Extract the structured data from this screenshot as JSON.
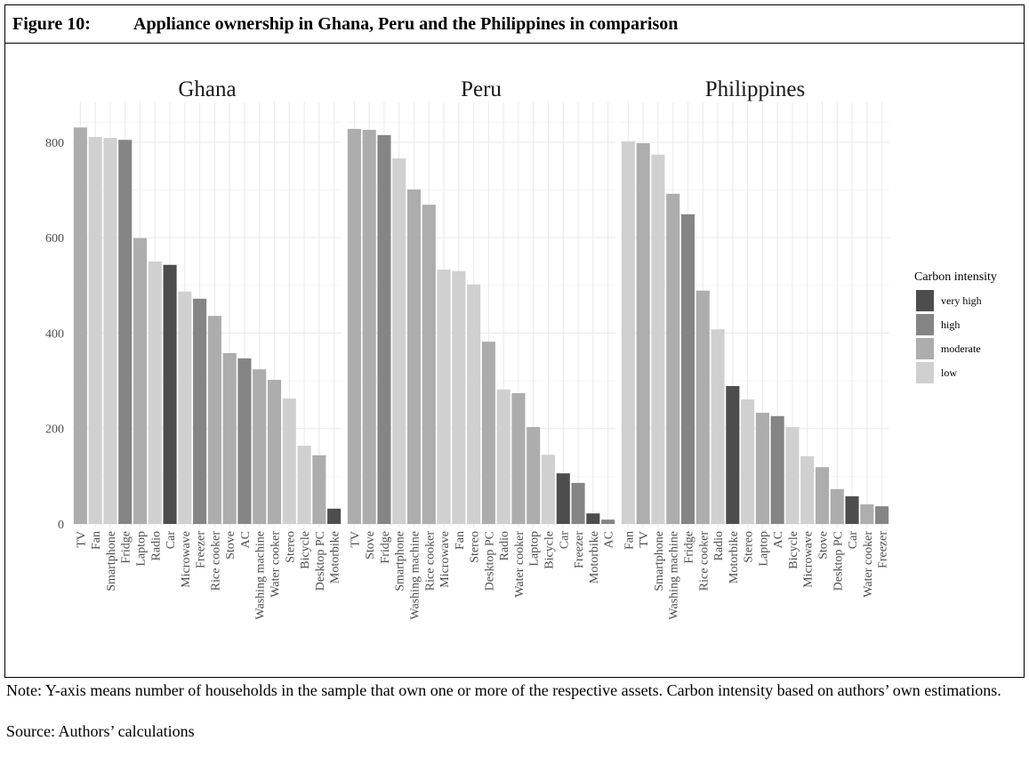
{
  "figure": {
    "label": "Figure 10:",
    "title": "Appliance ownership in Ghana, Peru and the Philippines in comparison"
  },
  "chart_data": [
    {
      "type": "bar",
      "title": "Ghana",
      "categories": [
        "TV",
        "Fan",
        "Smartphone",
        "Fridge",
        "Laptop",
        "Radio",
        "Car",
        "Microwave",
        "Freezer",
        "Rice cooker",
        "Stove",
        "AC",
        "Washing machine",
        "Water cooker",
        "Stereo",
        "Bicycle",
        "Desktop PC",
        "Motorbike"
      ],
      "values": [
        831,
        811,
        809,
        805,
        599,
        550,
        543,
        487,
        472,
        436,
        358,
        347,
        324,
        302,
        263,
        164,
        144,
        32
      ],
      "colors": [
        "#adadad",
        "#d0d0d0",
        "#d0d0d0",
        "#858585",
        "#adadad",
        "#d0d0d0",
        "#4d4d4d",
        "#d0d0d0",
        "#858585",
        "#adadad",
        "#adadad",
        "#858585",
        "#adadad",
        "#adadad",
        "#d0d0d0",
        "#d0d0d0",
        "#adadad",
        "#4d4d4d"
      ],
      "ylim": [
        0,
        880
      ],
      "yticks": [
        0,
        200,
        400,
        600,
        800
      ],
      "grid": true
    },
    {
      "type": "bar",
      "title": "Peru",
      "categories": [
        "TV",
        "Stove",
        "Fridge",
        "Smartphone",
        "Washing machine",
        "Rice cooker",
        "Microwave",
        "Fan",
        "Stereo",
        "Desktop PC",
        "Radio",
        "Water cooker",
        "Laptop",
        "Bicycle",
        "Car",
        "Freezer",
        "Motorbike",
        "AC"
      ],
      "values": [
        828,
        826,
        815,
        766,
        701,
        669,
        533,
        530,
        502,
        382,
        282,
        274,
        203,
        145,
        106,
        86,
        22,
        9
      ],
      "colors": [
        "#adadad",
        "#adadad",
        "#858585",
        "#d0d0d0",
        "#adadad",
        "#adadad",
        "#d0d0d0",
        "#d0d0d0",
        "#d0d0d0",
        "#adadad",
        "#d0d0d0",
        "#adadad",
        "#adadad",
        "#d0d0d0",
        "#4d4d4d",
        "#858585",
        "#4d4d4d",
        "#858585"
      ],
      "ylim": [
        0,
        880
      ],
      "yticks": [
        0,
        200,
        400,
        600,
        800
      ],
      "grid": true
    },
    {
      "type": "bar",
      "title": "Philippines",
      "categories": [
        "Fan",
        "TV",
        "Smartphone",
        "Washing machine",
        "Fridge",
        "Rice cooker",
        "Radio",
        "Motorbike",
        "Stereo",
        "Laptop",
        "AC",
        "Bicycle",
        "Microwave",
        "Stove",
        "Desktop PC",
        "Car",
        "Water cooker",
        "Freezer"
      ],
      "values": [
        802,
        798,
        774,
        692,
        649,
        489,
        408,
        289,
        261,
        233,
        226,
        203,
        142,
        119,
        73,
        58,
        41,
        37
      ],
      "colors": [
        "#d0d0d0",
        "#adadad",
        "#d0d0d0",
        "#adadad",
        "#858585",
        "#adadad",
        "#d0d0d0",
        "#4d4d4d",
        "#d0d0d0",
        "#adadad",
        "#858585",
        "#d0d0d0",
        "#d0d0d0",
        "#adadad",
        "#adadad",
        "#4d4d4d",
        "#adadad",
        "#858585"
      ],
      "ylim": [
        0,
        880
      ],
      "yticks": [
        0,
        200,
        400,
        600,
        800
      ],
      "grid": true
    }
  ],
  "legend": {
    "title": "Carbon intensity",
    "items": [
      {
        "label": "very high",
        "color": "#4d4d4d"
      },
      {
        "label": "high",
        "color": "#858585"
      },
      {
        "label": "moderate",
        "color": "#adadad"
      },
      {
        "label": "low",
        "color": "#d0d0d0"
      }
    ]
  },
  "note": "Note: Y-axis means number of households in the sample that own one or more of the respective assets. Carbon intensity based on authors’ own estimations.",
  "source": "Source: Authors’ calculations"
}
